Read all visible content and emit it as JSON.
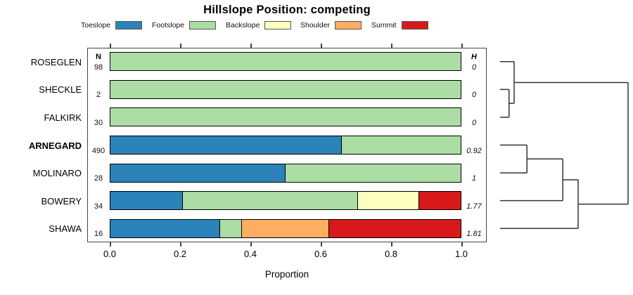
{
  "title": "Hillslope Position: competing",
  "legend": [
    {
      "label": "Toeslope",
      "color": "#2B83BA"
    },
    {
      "label": "Footslope",
      "color": "#ABDDA4"
    },
    {
      "label": "Backslope",
      "color": "#FFFFBF"
    },
    {
      "label": "Shoulder",
      "color": "#FDAE61"
    },
    {
      "label": "Summit",
      "color": "#D7191C"
    }
  ],
  "chart_data": {
    "type": "bar",
    "subtype": "horizontal-stacked-proportion",
    "title": "Hillslope Position: competing",
    "xlabel": "Proportion",
    "xlim": [
      0,
      1
    ],
    "xticks": [
      "0.0",
      "0.2",
      "0.4",
      "0.6",
      "0.8",
      "1.0"
    ],
    "xtick_values": [
      0,
      0.2,
      0.4,
      0.6,
      0.8,
      1.0
    ],
    "categories": [
      "Toeslope",
      "Footslope",
      "Backslope",
      "Shoulder",
      "Summit"
    ],
    "series_colors": [
      "#2B83BA",
      "#ABDDA4",
      "#FFFFBF",
      "#FDAE61",
      "#D7191C"
    ],
    "n_header": "N",
    "h_header": "H",
    "rows": [
      {
        "label": "ROSEGLEN",
        "n": "98",
        "h": "0",
        "bold": false,
        "values": [
          0,
          1,
          0,
          0,
          0
        ]
      },
      {
        "label": "SHECKLE",
        "n": "2",
        "h": "0",
        "bold": false,
        "values": [
          0,
          1,
          0,
          0,
          0
        ]
      },
      {
        "label": "FALKIRK",
        "n": "30",
        "h": "0",
        "bold": false,
        "values": [
          0,
          1,
          0,
          0,
          0
        ]
      },
      {
        "label": "ARNEGARD",
        "n": "490",
        "h": "0.92",
        "bold": true,
        "values": [
          0.66,
          0.34,
          0,
          0,
          0
        ]
      },
      {
        "label": "MOLINARO",
        "n": "28",
        "h": "1",
        "bold": false,
        "values": [
          0.5,
          0.5,
          0,
          0,
          0
        ]
      },
      {
        "label": "BOWERY",
        "n": "34",
        "h": "1.77",
        "bold": false,
        "values": [
          0.206,
          0.5,
          0.176,
          0,
          0.118
        ]
      },
      {
        "label": "SHAWA",
        "n": "16",
        "h": "1.81",
        "bold": false,
        "values": [
          0.3125,
          0.0625,
          0,
          0.25,
          0.375
        ]
      }
    ]
  },
  "dendrogram": {
    "leaves": [
      "ROSEGLEN",
      "SHECKLE",
      "FALKIRK",
      "ARNEGARD",
      "MOLINARO",
      "BOWERY",
      "SHAWA"
    ],
    "merges": [
      {
        "children": [
          "SHECKLE",
          "FALKIRK"
        ],
        "height": 0.07
      },
      {
        "children": [
          "ROSEGLEN",
          "@0"
        ],
        "height": 0.11
      },
      {
        "children": [
          "ARNEGARD",
          "MOLINARO"
        ],
        "height": 0.21
      },
      {
        "children": [
          "@2",
          "BOWERY"
        ],
        "height": 0.49
      },
      {
        "children": [
          "@3",
          "SHAWA"
        ],
        "height": 0.61
      },
      {
        "children": [
          "@1",
          "@4"
        ],
        "height": 1.0
      }
    ]
  }
}
